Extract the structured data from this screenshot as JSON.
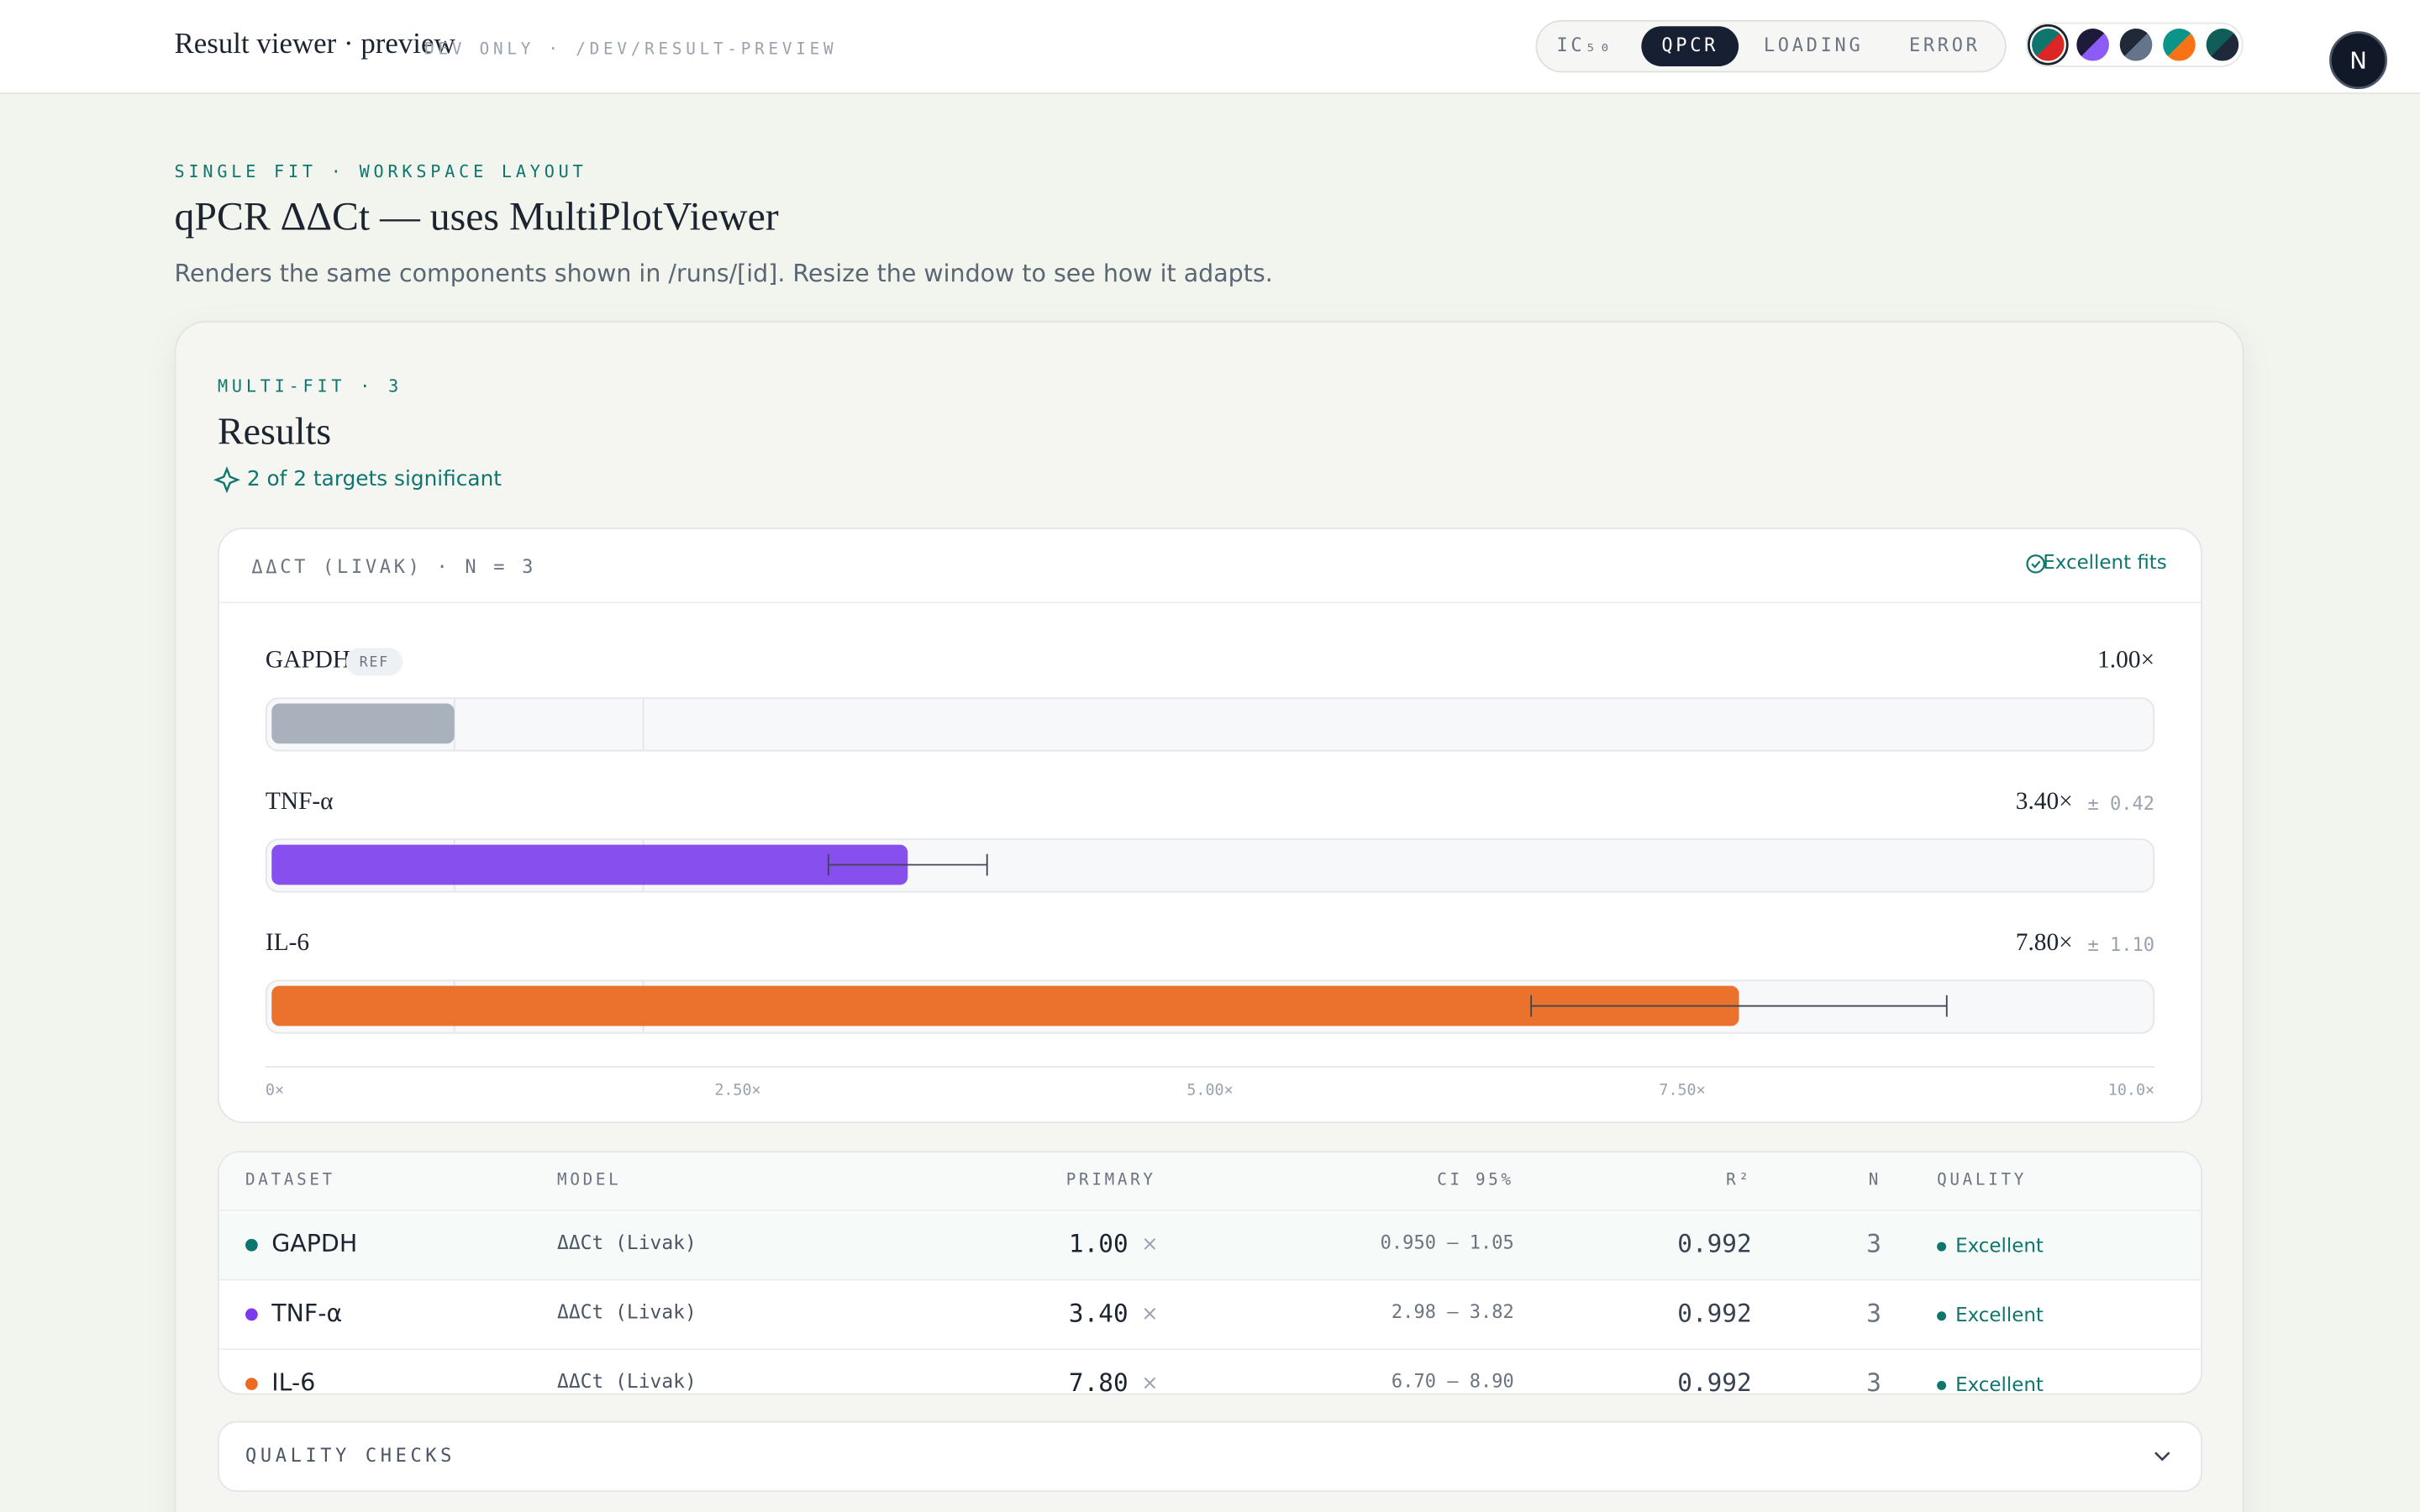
{
  "header": {
    "title": "Result viewer · preview",
    "note": "DEV ONLY · /DEV/RESULT-PREVIEW",
    "tabs": [
      "IC₅₀",
      "QPCR",
      "LOADING",
      "ERROR"
    ],
    "active_tab": 1,
    "avatar": "N"
  },
  "page": {
    "eyebrow": "SINGLE FIT · WORKSPACE LAYOUT",
    "title": "qPCR ΔΔCt — uses MultiPlotViewer",
    "subtitle": "Renders the same components shown in /runs/[id]. Resize the window to see how it adapts."
  },
  "results": {
    "eyebrow": "MULTI-FIT · 3",
    "title": "Results",
    "significance": "2 of 2 targets significant",
    "chart": {
      "type": "bar",
      "title": "ΔΔCT (LIVAK) · N = 3",
      "status": "Excellent fits",
      "categories": [
        "GAPDH",
        "TNF-α",
        "IL-6"
      ],
      "badges": [
        "REF",
        null,
        null
      ],
      "values": [
        1.0,
        3.4,
        7.8
      ],
      "value_labels": [
        "1.00×",
        "3.40×",
        "7.80×"
      ],
      "errors": [
        null,
        0.42,
        1.1
      ],
      "error_labels": [
        null,
        "± 0.42",
        "± 1.10"
      ],
      "colors": [
        "#a3adb8",
        "#8146ec",
        "#ea6a21"
      ],
      "reference_lines": [
        1,
        2
      ],
      "xlim": [
        0,
        10
      ],
      "xticks": [
        {
          "value": 0,
          "label": "0×"
        },
        {
          "value": 2.5,
          "label": "2.50×"
        },
        {
          "value": 5,
          "label": "5.00×"
        },
        {
          "value": 7.5,
          "label": "7.50×"
        },
        {
          "value": 10,
          "label": "10.0×"
        }
      ]
    },
    "table": {
      "columns": [
        "DATASET",
        "MODEL",
        "PRIMARY",
        "CI 95%",
        "R²",
        "N",
        "QUALITY"
      ],
      "unit": "×",
      "row_colors": [
        "#0f766e",
        "#7c3aed",
        "#ea6a21"
      ],
      "rows": [
        [
          "GAPDH",
          "ΔΔCt (Livak)",
          "1.00",
          "0.950 – 1.05",
          "0.992",
          "3",
          "Excellent"
        ],
        [
          "TNF-α",
          "ΔΔCt (Livak)",
          "3.40",
          "2.98 – 3.82",
          "0.992",
          "3",
          "Excellent"
        ],
        [
          "IL-6",
          "ΔΔCt (Livak)",
          "7.80",
          "6.70 – 8.90",
          "0.992",
          "3",
          "Excellent"
        ]
      ]
    },
    "quality_checks": "QUALITY CHECKS"
  }
}
